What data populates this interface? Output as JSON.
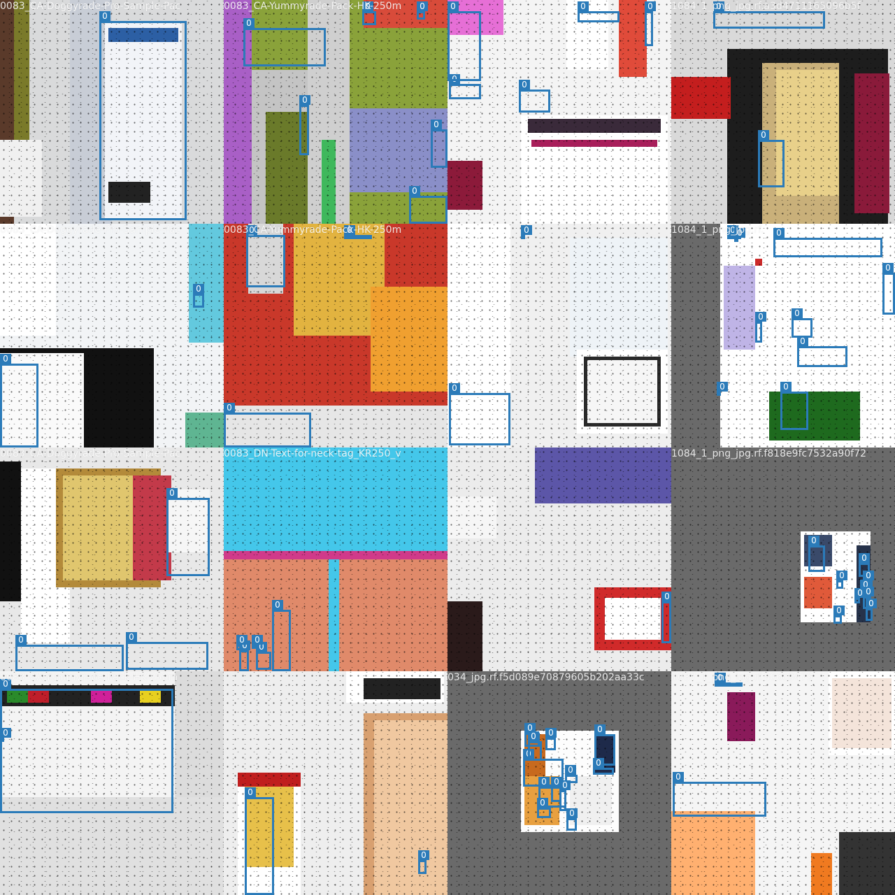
{
  "grid": {
    "tiles": [
      {
        "title": "0083_CA-Doggyrade-Pro-Sample-Pac",
        "bg": "#d9dadb",
        "labels": [
          "0"
        ]
      },
      {
        "title": "0083_CA-Yummyrade-Pack-HK-250m",
        "bg": "#8aa23a",
        "labels": [
          "0",
          "0",
          "0",
          "0",
          "0",
          "0"
        ]
      },
      {
        "title": "",
        "bg": "#f4f4f4",
        "labels": [
          "0",
          "0",
          "0",
          "0",
          "0"
        ]
      },
      {
        "title": "1084_1_png_jpg.rf.a3d4711165096b5f",
        "bg": "#d0d0d0",
        "labels": [
          "0",
          "0"
        ]
      },
      {
        "title": "0083_CA-Doggyrade-Pro-Sample-Pac",
        "bg": "#f2f4f6",
        "labels": [
          "0",
          "0"
        ]
      },
      {
        "title": "0083_CA-Yummyrade-Pack-HK-250m",
        "bg": "#c93a2c",
        "labels": [
          "0",
          "0",
          "0"
        ]
      },
      {
        "title": "",
        "bg": "#f0f0f0",
        "labels": [
          "0",
          "0"
        ]
      },
      {
        "title": "1084_1_png_jpg.rf.",
        "bg": "#f4f4f4",
        "labels": [
          "0",
          "0",
          "0",
          "0",
          "0",
          "0",
          "0",
          "0",
          "0"
        ]
      },
      {
        "title": "0083_CA-Doggyrade-Pro-Sample-Pac",
        "bg": "#e8e8e8",
        "labels": [
          "0",
          "0",
          "0"
        ]
      },
      {
        "title": "0083_DN-Text-for-neck-tag_KR250_v",
        "bg": "#44c7ea",
        "labels": [
          "0",
          "0",
          "0",
          "0",
          "0"
        ]
      },
      {
        "title": "",
        "bg": "#ececec",
        "labels": [
          "0"
        ]
      },
      {
        "title": "1084_1_png_jpg.rf.f818e9fc7532a90f72",
        "bg": "#6a6a6a",
        "labels": [
          "0",
          "0",
          "0",
          "0",
          "0",
          "0",
          "0",
          "0",
          "0"
        ]
      },
      {
        "title": "0083_CA-Yummyrade-Pack-HK-250m",
        "bg": "#dcdcdc",
        "labels": [
          "0",
          "0"
        ]
      },
      {
        "title": "",
        "bg": "#eeeeee",
        "labels": [
          "0",
          "0"
        ]
      },
      {
        "title": "034_jpg.rf.f5d089e70879605b202aa33c",
        "bg": "#6a6a6a",
        "labels": [
          "0",
          "0",
          "0",
          "0",
          "0",
          "0",
          "0",
          "0",
          "0",
          "0",
          "0",
          "0"
        ]
      },
      {
        "title": "1087_1_png_jpg.rf.806c0479",
        "bg": "#f5f5f5",
        "labels": [
          "0",
          "0"
        ]
      }
    ]
  },
  "colors": {
    "box": "#2b7bb9",
    "label_text": "#ffffff"
  }
}
